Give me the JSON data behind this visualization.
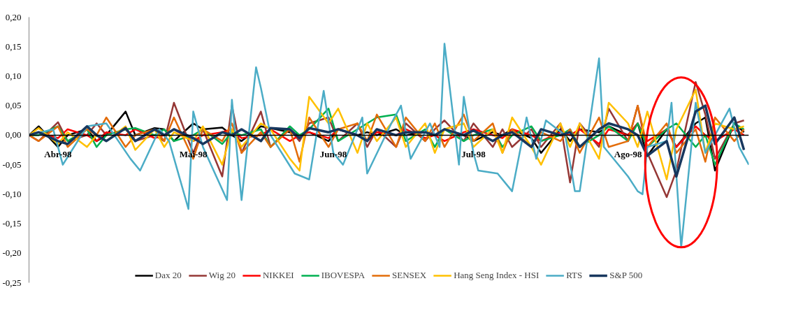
{
  "chart_data": {
    "type": "line",
    "x": [
      "1998-04-01",
      "1998-04-03",
      "1998-04-07",
      "1998-04-09",
      "1998-04-13",
      "1998-04-15",
      "1998-04-17",
      "1998-04-21",
      "1998-04-23",
      "1998-04-27",
      "1998-04-29",
      "1998-05-01",
      "1998-05-05",
      "1998-05-07",
      "1998-05-11",
      "1998-05-13",
      "1998-05-15",
      "1998-05-19",
      "1998-05-21",
      "1998-05-25",
      "1998-05-27",
      "1998-05-29",
      "1998-06-02",
      "1998-06-04",
      "1998-06-08",
      "1998-06-10",
      "1998-06-12",
      "1998-06-16",
      "1998-06-18",
      "1998-06-22",
      "1998-06-24",
      "1998-06-26",
      "1998-06-30",
      "1998-07-02",
      "1998-07-06",
      "1998-07-08",
      "1998-07-10",
      "1998-07-14",
      "1998-07-16",
      "1998-07-20",
      "1998-07-22",
      "1998-07-24",
      "1998-07-28",
      "1998-07-30",
      "1998-08-03",
      "1998-08-05",
      "1998-08-07",
      "1998-08-11",
      "1998-08-13",
      "1998-08-17",
      "1998-08-19",
      "1998-08-21",
      "1998-08-25",
      "1998-08-27"
    ],
    "xlim": [
      "1998-04-01",
      "1998-08-28"
    ],
    "xticks": [
      {
        "value": "1998-04-07",
        "label": "Abr-98"
      },
      {
        "value": "1998-05-05",
        "label": "Mai-98"
      },
      {
        "value": "1998-06-03",
        "label": "Jun-98"
      },
      {
        "value": "1998-07-02",
        "label": "Jul-98"
      },
      {
        "value": "1998-08-03",
        "label": "Ago-98"
      }
    ],
    "ylim": [
      -0.25,
      0.2
    ],
    "yticks": [
      {
        "value": -0.25,
        "label": "-0,25"
      },
      {
        "value": -0.2,
        "label": "-0,20"
      },
      {
        "value": -0.15,
        "label": "-0,15"
      },
      {
        "value": -0.1,
        "label": "-0,10"
      },
      {
        "value": -0.05,
        "label": "-0,05"
      },
      {
        "value": 0,
        "label": "0,00"
      },
      {
        "value": 0.05,
        "label": "0,05"
      },
      {
        "value": 0.1,
        "label": "0,10"
      },
      {
        "value": 0.15,
        "label": "0,15"
      },
      {
        "value": 0.2,
        "label": "0,20"
      }
    ],
    "grid": false,
    "legend": "bottom",
    "marker": "none",
    "line_style": "solid",
    "series": [
      {
        "name": "Dax 20",
        "color": "#000000",
        "values": [
          0,
          0.015,
          -0.02,
          0,
          0.01,
          -0.01,
          0,
          0.04,
          0,
          0.012,
          0.01,
          -0.01,
          0.02,
          0.01,
          0.013,
          0,
          -0.01,
          0.015,
          0.012,
          0.005,
          0,
          0.005,
          -0.01,
          0.01,
          0,
          0.005,
          0,
          0.01,
          0,
          0.005,
          0,
          0.01,
          0,
          -0.01,
          0.005,
          0,
          0.01,
          -0.005,
          -0.03,
          0.01,
          -0.01,
          0.01,
          0.005,
          0.015,
          0,
          0.02,
          -0.035,
          0.01,
          -0.02,
          0.02,
          0.03,
          -0.06,
          0.02,
          0.005
        ]
      },
      {
        "name": "Wig 20",
        "color": "#953735",
        "values": [
          0,
          -0.01,
          0.022,
          -0.01,
          0,
          0.02,
          0,
          0.01,
          -0.01,
          0,
          -0.01,
          0.055,
          -0.03,
          0.01,
          -0.07,
          0.05,
          -0.03,
          0.04,
          -0.02,
          0.01,
          -0.01,
          0.02,
          0.03,
          -0.01,
          0.02,
          -0.02,
          0.01,
          -0.02,
          0.02,
          -0.01,
          0.01,
          0.025,
          -0.01,
          0.02,
          -0.02,
          0.01,
          -0.02,
          0.01,
          -0.02,
          0.02,
          -0.08,
          0.02,
          -0.02,
          0.045,
          -0.01,
          0.05,
          -0.03,
          -0.105,
          -0.06,
          0.09,
          0.035,
          -0.04,
          0.02,
          0.025
        ]
      },
      {
        "name": "NIKKEI",
        "color": "#ff0000",
        "values": [
          0,
          0.005,
          -0.005,
          0.01,
          0,
          -0.01,
          0.005,
          0,
          0.01,
          -0.005,
          0,
          0.01,
          -0.01,
          0,
          0.005,
          0.01,
          -0.005,
          0,
          0.01,
          -0.01,
          0,
          0.005,
          -0.005,
          0.01,
          0,
          -0.01,
          0.005,
          0,
          0.01,
          -0.005,
          0,
          -0.01,
          0.005,
          0.01,
          0,
          -0.005,
          0.01,
          0,
          -0.01,
          0.005,
          0,
          0.01,
          -0.015,
          0.01,
          0,
          0.02,
          -0.01,
          0.01,
          -0.02,
          0.015,
          0,
          -0.01,
          0.01,
          0
        ]
      },
      {
        "name": "IBOVESPA",
        "color": "#00b050",
        "values": [
          0,
          0,
          0.015,
          -0.01,
          0.01,
          -0.02,
          0,
          0.01,
          0.012,
          0,
          0.01,
          -0.01,
          0,
          0.01,
          -0.015,
          0.005,
          0,
          0.01,
          -0.02,
          0.015,
          0,
          0.01,
          0.045,
          -0.01,
          0.01,
          0.02,
          0.03,
          0.035,
          -0.01,
          0.01,
          -0.02,
          0.01,
          -0.01,
          0,
          0.01,
          -0.02,
          0,
          0.015,
          -0.01,
          0,
          0.01,
          -0.02,
          0,
          0.015,
          -0.01,
          0.02,
          -0.02,
          0.01,
          0.02,
          -0.02,
          0,
          -0.05,
          0.02,
          0.01
        ]
      },
      {
        "name": "SENSEX",
        "color": "#e36c09",
        "values": [
          0,
          -0.01,
          0.015,
          -0.02,
          0.01,
          0,
          0.03,
          -0.02,
          0,
          0.01,
          -0.01,
          0.03,
          -0.04,
          0.01,
          -0.01,
          0.02,
          -0.03,
          0.005,
          -0.02,
          0.01,
          -0.045,
          0.03,
          -0.02,
          0.01,
          0.02,
          -0.01,
          0.035,
          -0.02,
          0.03,
          -0.01,
          0.02,
          -0.02,
          0.035,
          -0.01,
          0.02,
          -0.03,
          0.01,
          -0.02,
          0.005,
          -0.01,
          0.01,
          -0.03,
          0.03,
          -0.02,
          -0.01,
          0.05,
          -0.02,
          0.02,
          -0.03,
          0.01,
          -0.045,
          0.03,
          -0.01,
          0.01
        ]
      },
      {
        "name": "Hang Seng Index - HSI",
        "color": "#ffc000",
        "values": [
          0,
          0.012,
          -0.015,
          0.005,
          -0.02,
          0,
          -0.01,
          0.015,
          -0.025,
          0.01,
          -0.02,
          0.005,
          -0.01,
          0.015,
          -0.05,
          0.01,
          -0.02,
          0.02,
          0.01,
          -0.04,
          -0.06,
          0.065,
          0.02,
          0.045,
          -0.03,
          0.02,
          -0.01,
          0.03,
          -0.02,
          0.02,
          -0.03,
          0.01,
          0.02,
          -0.02,
          0.01,
          -0.03,
          0.03,
          -0.02,
          -0.05,
          0.02,
          -0.02,
          0.02,
          -0.04,
          0.055,
          0.02,
          -0.02,
          0.04,
          -0.075,
          0.01,
          0.077,
          -0.03,
          0.02,
          0.01,
          0.015
        ]
      },
      {
        "name": "RTS",
        "color": "#4bacc6",
        "x": [
          "1998-04-01",
          "1998-04-06",
          "1998-04-08",
          "1998-04-13",
          "1998-04-17",
          "1998-04-22",
          "1998-04-24",
          "1998-04-28",
          "1998-04-30",
          "1998-05-04",
          "1998-05-05",
          "1998-05-07",
          "1998-05-12",
          "1998-05-13",
          "1998-05-15",
          "1998-05-18",
          "1998-05-19",
          "1998-05-21",
          "1998-05-26",
          "1998-05-29",
          "1998-06-01",
          "1998-06-03",
          "1998-06-05",
          "1998-06-09",
          "1998-06-10",
          "1998-06-15",
          "1998-06-17",
          "1998-06-19",
          "1998-06-23",
          "1998-06-25",
          "1998-06-26",
          "1998-06-29",
          "1998-06-30",
          "1998-07-02",
          "1998-07-03",
          "1998-07-07",
          "1998-07-10",
          "1998-07-13",
          "1998-07-15",
          "1998-07-17",
          "1998-07-21",
          "1998-07-23",
          "1998-07-24",
          "1998-07-28",
          "1998-07-29",
          "1998-08-03",
          "1998-08-05",
          "1998-08-06",
          "1998-08-07",
          "1998-08-11",
          "1998-08-12",
          "1998-08-14",
          "1998-08-17",
          "1998-08-19",
          "1998-08-24",
          "1998-08-26",
          "1998-08-28"
        ],
        "values": [
          0,
          0.01,
          -0.05,
          0.015,
          0.02,
          -0.04,
          -0.06,
          0.01,
          -0.01,
          -0.125,
          0.04,
          -0.02,
          -0.11,
          0.06,
          -0.11,
          0.115,
          0.08,
          0,
          -0.065,
          -0.075,
          0.075,
          -0.03,
          -0.05,
          0.03,
          -0.065,
          0.02,
          0.05,
          -0.04,
          0.02,
          -0.02,
          0.155,
          -0.05,
          0.065,
          -0.03,
          -0.06,
          -0.065,
          -0.095,
          0.03,
          -0.04,
          0.025,
          0,
          -0.095,
          -0.095,
          0.13,
          -0.02,
          -0.07,
          -0.095,
          -0.1,
          -0.02,
          -0.01,
          0.055,
          -0.19,
          0.055,
          -0.03,
          0.045,
          -0.02,
          -0.05
        ]
      },
      {
        "name": "S&P 500",
        "color": "#17375e",
        "values": [
          0,
          0.005,
          -0.01,
          -0.015,
          0.015,
          0,
          -0.01,
          0.012,
          -0.01,
          0.01,
          0,
          0.01,
          -0.005,
          -0.015,
          0.005,
          0,
          0.01,
          -0.01,
          0.012,
          0.01,
          -0.005,
          0.012,
          0.005,
          0.01,
          0,
          -0.01,
          0.01,
          0,
          0.005,
          0.005,
          0,
          0.01,
          0,
          0.008,
          -0.01,
          0,
          0.005,
          -0.02,
          0.01,
          0,
          0.005,
          -0.02,
          0.01,
          0.02,
          0.01,
          0,
          -0.035,
          -0.01,
          -0.07,
          0.04,
          0.05,
          -0.015,
          0.03,
          -0.025
        ]
      }
    ]
  }
}
